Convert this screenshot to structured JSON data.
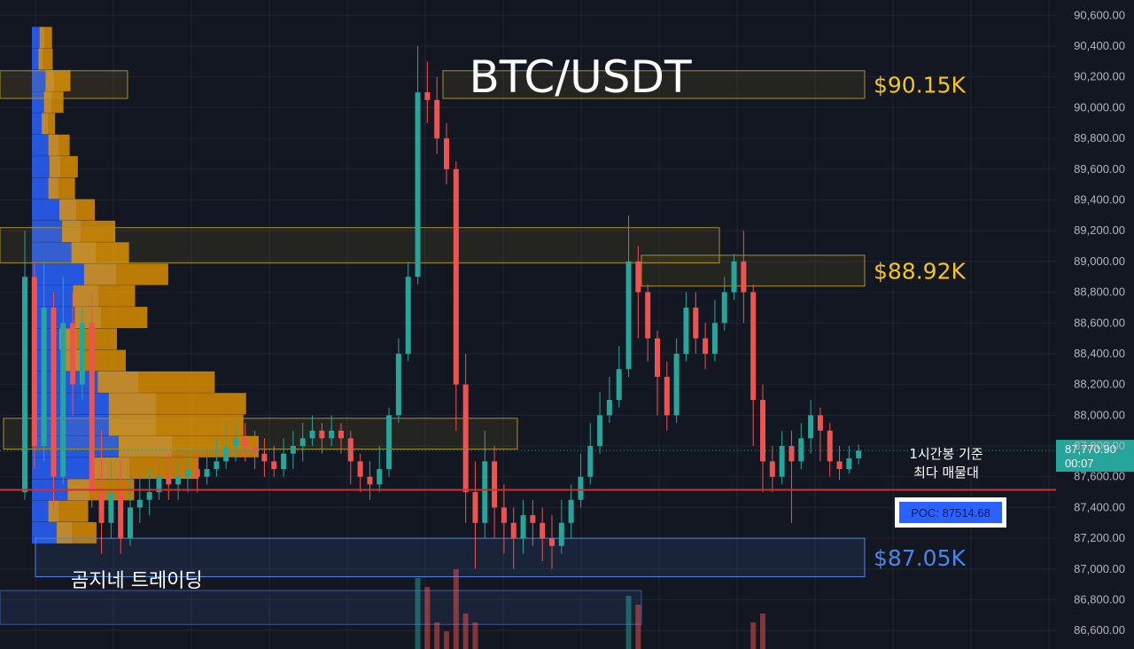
{
  "chart_data": {
    "type": "candlestick",
    "title": "BTC/USDT",
    "timeframe_note": "1시간봉 기준",
    "note_line2": "최다 매물대",
    "watermark": "곰지네 트레이딩",
    "y_axis": {
      "ticks": [
        86600,
        86800,
        87000,
        87200,
        87400,
        87600,
        87800,
        88000,
        88200,
        88400,
        88600,
        88800,
        89000,
        89200,
        89400,
        89600,
        89800,
        90000,
        90200,
        90400,
        90600
      ],
      "tick_labels": [
        "86,600.00",
        "86,800.00",
        "87,000.00",
        "87,200.00",
        "87,400.00",
        "87,600.00",
        "87,800.00",
        "88,000.00",
        "88,200.00",
        "88,400.00",
        "88,600.00",
        "88,800.00",
        "89,000.00",
        "89,200.00",
        "89,400.00",
        "89,600.00",
        "89,800.00",
        "90,000.00",
        "90,200.00",
        "90,400.00",
        "90,600.00"
      ],
      "range": [
        86480,
        90700
      ]
    },
    "levels": [
      {
        "label": "$90.15K",
        "price_low": 90060,
        "price_high": 90240,
        "color": "#f5c518"
      },
      {
        "label": "$88.92K",
        "price_low": 88840,
        "price_high": 89040,
        "color": "#f5c518"
      },
      {
        "label": "$87.05K",
        "price_low": 86950,
        "price_high": 87200,
        "color": "#4a86e8"
      }
    ],
    "poc": {
      "label": "POC: 87514.68",
      "value": 87514.68
    },
    "current_price": {
      "label": "87,770.90",
      "countdown": "00:07",
      "value": 87770.9
    },
    "candles": [
      [
        87500,
        88900,
        89200,
        87450
      ],
      [
        88900,
        87800,
        89000,
        87650
      ],
      [
        87800,
        88700,
        89000,
        87700
      ],
      [
        88700,
        87600,
        88800,
        87400
      ],
      [
        87600,
        88600,
        88900,
        87550
      ],
      [
        88600,
        88200,
        88800,
        88000
      ],
      [
        88200,
        88600,
        88700,
        88100
      ],
      [
        88600,
        87500,
        88800,
        87400
      ],
      [
        87500,
        87300,
        87900,
        87100
      ],
      [
        87300,
        87500,
        87700,
        87200
      ],
      [
        87500,
        87200,
        87700,
        87100
      ],
      [
        87200,
        87400,
        87600,
        87150
      ],
      [
        87400,
        87450,
        87600,
        87300
      ],
      [
        87450,
        87500,
        87650,
        87350
      ],
      [
        87500,
        87600,
        87700,
        87450
      ],
      [
        87600,
        87550,
        87750,
        87450
      ],
      [
        87550,
        87600,
        87700,
        87450
      ],
      [
        87600,
        87650,
        87750,
        87500
      ],
      [
        87650,
        87600,
        87750,
        87500
      ],
      [
        87600,
        87650,
        87800,
        87550
      ],
      [
        87650,
        87700,
        87850,
        87600
      ],
      [
        87700,
        87800,
        87950,
        87650
      ],
      [
        87800,
        87850,
        87950,
        87700
      ],
      [
        87850,
        87800,
        87950,
        87700
      ],
      [
        87800,
        87750,
        87900,
        87650
      ],
      [
        87750,
        87700,
        87850,
        87600
      ],
      [
        87700,
        87650,
        87800,
        87600
      ],
      [
        87650,
        87750,
        87850,
        87600
      ],
      [
        87750,
        87800,
        87900,
        87650
      ],
      [
        87800,
        87850,
        87950,
        87700
      ],
      [
        87850,
        87900,
        88000,
        87800
      ],
      [
        87900,
        87850,
        87950,
        87750
      ],
      [
        87850,
        87900,
        88000,
        87800
      ],
      [
        87900,
        87850,
        87950,
        87750
      ],
      [
        87850,
        87700,
        87900,
        87550
      ],
      [
        87700,
        87600,
        87750,
        87500
      ],
      [
        87600,
        87550,
        87700,
        87450
      ],
      [
        87550,
        87650,
        87800,
        87500
      ],
      [
        87650,
        88000,
        88050,
        87600
      ],
      [
        88000,
        88400,
        88500,
        87950
      ],
      [
        88400,
        88900,
        89000,
        88350
      ],
      [
        88900,
        90100,
        90400,
        88850
      ],
      [
        90100,
        90050,
        90300,
        89900
      ],
      [
        90050,
        89800,
        90200,
        89700
      ],
      [
        89800,
        89600,
        89900,
        89500
      ],
      [
        89600,
        88200,
        89650,
        87900
      ],
      [
        88200,
        87500,
        88400,
        87300
      ],
      [
        87500,
        87300,
        87700,
        87000
      ],
      [
        87300,
        87700,
        87900,
        87200
      ],
      [
        87700,
        87400,
        87800,
        87200
      ],
      [
        87400,
        87300,
        87550,
        87100
      ],
      [
        87300,
        87200,
        87400,
        87000
      ],
      [
        87200,
        87350,
        87450,
        87100
      ],
      [
        87350,
        87300,
        87450,
        87150
      ],
      [
        87300,
        87200,
        87400,
        87050
      ],
      [
        87200,
        87150,
        87350,
        87000
      ],
      [
        87150,
        87300,
        87450,
        87100
      ],
      [
        87300,
        87450,
        87550,
        87200
      ],
      [
        87450,
        87600,
        87750,
        87400
      ],
      [
        87600,
        87800,
        87950,
        87550
      ],
      [
        87800,
        88000,
        88150,
        87750
      ],
      [
        88000,
        88100,
        88250,
        87950
      ],
      [
        88100,
        88300,
        88450,
        88050
      ],
      [
        88300,
        89000,
        89300,
        88250
      ],
      [
        89000,
        88800,
        89100,
        88500
      ],
      [
        88800,
        88500,
        88850,
        88350
      ],
      [
        88500,
        88250,
        88550,
        88000
      ],
      [
        88250,
        88000,
        88350,
        87900
      ],
      [
        88000,
        88400,
        88500,
        87950
      ],
      [
        88400,
        88700,
        88800,
        88350
      ],
      [
        88700,
        88500,
        88800,
        88400
      ],
      [
        88500,
        88400,
        88600,
        88300
      ],
      [
        88400,
        88600,
        88750,
        88350
      ],
      [
        88600,
        88800,
        88900,
        88550
      ],
      [
        88800,
        89000,
        89050,
        88750
      ],
      [
        89000,
        88800,
        89200,
        88600
      ],
      [
        88800,
        88100,
        88850,
        87800
      ],
      [
        88100,
        87700,
        88200,
        87500
      ],
      [
        87700,
        87600,
        87800,
        87500
      ],
      [
        87600,
        87800,
        87900,
        87550
      ],
      [
        87800,
        87700,
        87900,
        87300
      ],
      [
        87700,
        87850,
        87950,
        87650
      ],
      [
        87850,
        88000,
        88100,
        87750
      ],
      [
        88000,
        87900,
        88050,
        87700
      ],
      [
        87900,
        87700,
        87950,
        87600
      ],
      [
        87700,
        87650,
        87800,
        87580
      ],
      [
        87650,
        87720,
        87800,
        87620
      ],
      [
        87720,
        87770,
        87810,
        87680
      ]
    ],
    "volume_profile": {
      "bins": [
        {
          "price": 90450,
          "blue": 14,
          "orange": 14
        },
        {
          "price": 90310,
          "blue": 12,
          "orange": 16
        },
        {
          "price": 90170,
          "blue": 25,
          "orange": 28
        },
        {
          "price": 90030,
          "blue": 22,
          "orange": 22
        },
        {
          "price": 89890,
          "blue": 18,
          "orange": 15
        },
        {
          "price": 89750,
          "blue": 30,
          "orange": 24
        },
        {
          "price": 89610,
          "blue": 32,
          "orange": 32
        },
        {
          "price": 89470,
          "blue": 30,
          "orange": 30
        },
        {
          "price": 89330,
          "blue": 50,
          "orange": 40
        },
        {
          "price": 89190,
          "blue": 55,
          "orange": 60
        },
        {
          "price": 89050,
          "blue": 72,
          "orange": 65
        },
        {
          "price": 88910,
          "blue": 95,
          "orange": 95
        },
        {
          "price": 88770,
          "blue": 75,
          "orange": 70
        },
        {
          "price": 88630,
          "blue": 78,
          "orange": 82
        },
        {
          "price": 88490,
          "blue": 50,
          "orange": 65
        },
        {
          "price": 88350,
          "blue": 58,
          "orange": 70
        },
        {
          "price": 88210,
          "blue": 120,
          "orange": 132
        },
        {
          "price": 88070,
          "blue": 140,
          "orange": 155
        },
        {
          "price": 87930,
          "blue": 140,
          "orange": 152
        },
        {
          "price": 87790,
          "blue": 158,
          "orange": 158
        },
        {
          "price": 87650,
          "blue": 110,
          "orange": 120
        },
        {
          "price": 87510,
          "blue": 65,
          "orange": 75
        },
        {
          "price": 87370,
          "blue": 30,
          "orange": 45
        },
        {
          "price": 87230,
          "blue": 45,
          "orange": 45
        }
      ]
    },
    "volume_bars": [
      {
        "x_index": 41,
        "v": 8
      },
      {
        "x_index": 42,
        "v": 7
      },
      {
        "x_index": 43,
        "v": 3
      },
      {
        "x_index": 44,
        "v": 2
      },
      {
        "x_index": 45,
        "v": 9
      },
      {
        "x_index": 46,
        "v": 4
      },
      {
        "x_index": 47,
        "v": 3
      },
      {
        "x_index": 63,
        "v": 6
      },
      {
        "x_index": 64,
        "v": 5
      },
      {
        "x_index": 76,
        "v": 3
      },
      {
        "x_index": 77,
        "v": 4
      }
    ],
    "colors": {
      "background": "#131722",
      "up": "#26a69a",
      "down": "#ef5350",
      "grid": "#1f2433",
      "poc_line": "#d32f2f",
      "profile_blue": "#2962ff",
      "profile_orange": "#e69500",
      "poc_box_fill": "#2962ff",
      "current_price_bg": "#26a69a"
    }
  }
}
